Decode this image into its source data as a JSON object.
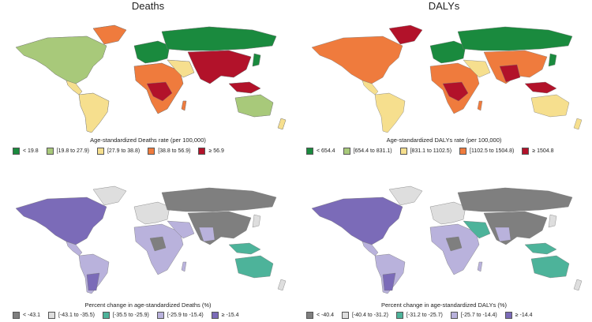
{
  "titles": {
    "left": "Deaths",
    "right": "DALYs"
  },
  "panels": [
    {
      "caption": "Age-standardized Deaths rate (per 100,000)",
      "legend": [
        {
          "label": "< 19.8",
          "color": "#1a8a3e"
        },
        {
          "label": "[19.8 to 27.9)",
          "color": "#a8c97a"
        },
        {
          "label": "[27.9 to 38.8)",
          "color": "#f6df8e"
        },
        {
          "label": "[38.8 to 56.9)",
          "color": "#ef7b3d"
        },
        {
          "label": "≥ 56.9",
          "color": "#b2122a"
        }
      ]
    },
    {
      "caption": "Age-standardized DALYs rate (per 100,000)",
      "legend": [
        {
          "label": "< 654.4",
          "color": "#1a8a3e"
        },
        {
          "label": "[654.4 to 831.1)",
          "color": "#a8c97a"
        },
        {
          "label": "[831.1 to 1102.5)",
          "color": "#f6df8e"
        },
        {
          "label": "[1102.5 to 1504.8)",
          "color": "#ef7b3d"
        },
        {
          "label": "≥ 1504.8",
          "color": "#b2122a"
        }
      ]
    },
    {
      "caption": "Percent change in age-standardized Deaths (%)",
      "legend": [
        {
          "label": "< -43.1",
          "color": "#7f7f7f"
        },
        {
          "label": "[-43.1 to -35.5)",
          "color": "#dedede"
        },
        {
          "label": "[-35.5 to -25.9)",
          "color": "#4db39a"
        },
        {
          "label": "[-25.9 to -15.4)",
          "color": "#b9b2dc"
        },
        {
          "label": "≥ -15.4",
          "color": "#7b6bb8"
        }
      ]
    },
    {
      "caption": "Percent change in age-standardized DALYs (%)",
      "legend": [
        {
          "label": "< -40.4",
          "color": "#7f7f7f"
        },
        {
          "label": "[-40.4 to -31.2)",
          "color": "#dedede"
        },
        {
          "label": "[-31.2 to -25.7)",
          "color": "#4db39a"
        },
        {
          "label": "[-25.7 to -14.4)",
          "color": "#b9b2dc"
        },
        {
          "label": "≥ -14.4",
          "color": "#7b6bb8"
        }
      ]
    }
  ]
}
